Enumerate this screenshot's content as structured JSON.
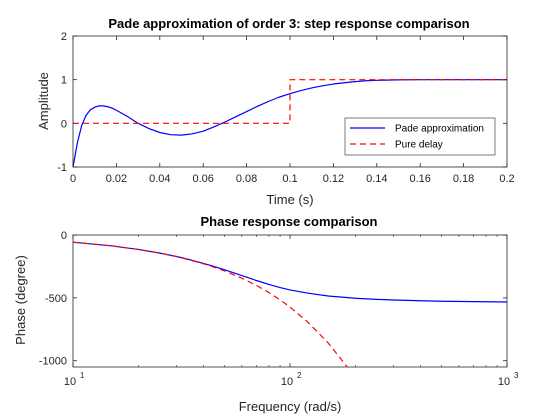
{
  "chart_data": [
    {
      "type": "line",
      "title": "Pade approximation of order 3: step response comparison",
      "xlabel": "Time (s)",
      "ylabel": "Amplitude",
      "xlim": [
        0,
        0.2
      ],
      "ylim": [
        -1,
        2
      ],
      "xticks": [
        0,
        0.02,
        0.04,
        0.06,
        0.08,
        0.1,
        0.12,
        0.14,
        0.16,
        0.18,
        0.2
      ],
      "xtick_labels": [
        "0",
        "0.02",
        "0.04",
        "0.06",
        "0.08",
        "0.1",
        "0.12",
        "0.14",
        "0.16",
        "0.18",
        "0.2"
      ],
      "yticks": [
        -1,
        0,
        1,
        2
      ],
      "ytick_labels": [
        "-1",
        "0",
        "1",
        "2"
      ],
      "legend": {
        "placement": "bottom-right",
        "entries": [
          "Pade approximation",
          "Pure delay"
        ]
      },
      "grid": false,
      "series": [
        {
          "name": "Pade approximation",
          "color": "#0000ff",
          "style": "solid",
          "x": [
            0,
            0.002,
            0.004,
            0.006,
            0.008,
            0.01,
            0.012,
            0.014,
            0.016,
            0.018,
            0.02,
            0.025,
            0.03,
            0.035,
            0.04,
            0.045,
            0.05,
            0.055,
            0.06,
            0.065,
            0.07,
            0.075,
            0.08,
            0.085,
            0.09,
            0.095,
            0.1,
            0.105,
            0.11,
            0.115,
            0.12,
            0.125,
            0.13,
            0.135,
            0.14,
            0.15,
            0.16,
            0.17,
            0.18,
            0.19,
            0.2
          ],
          "y": [
            -1,
            -0.45,
            -0.05,
            0.18,
            0.31,
            0.37,
            0.4,
            0.4,
            0.38,
            0.35,
            0.3,
            0.16,
            0.0,
            -0.12,
            -0.21,
            -0.26,
            -0.27,
            -0.24,
            -0.18,
            -0.08,
            0.03,
            0.15,
            0.27,
            0.39,
            0.5,
            0.6,
            0.68,
            0.75,
            0.81,
            0.86,
            0.9,
            0.93,
            0.955,
            0.975,
            0.985,
            0.995,
            1.0,
            1.0,
            1.0,
            1.0,
            1.0
          ]
        },
        {
          "name": "Pure delay",
          "color": "#ff0000",
          "style": "dashed",
          "x": [
            0,
            0.1,
            0.1,
            0.2
          ],
          "y": [
            0,
            0,
            1,
            1
          ]
        }
      ]
    },
    {
      "type": "line",
      "title": "Phase response comparison",
      "xlabel": "Frequency (rad/s)",
      "ylabel": "Phase (degree)",
      "xscale": "log",
      "xlim": [
        10,
        1000
      ],
      "ylim": [
        -1050,
        0
      ],
      "xticks": [
        10,
        100,
        1000
      ],
      "xtick_labels": [
        {
          "base": "10",
          "exp": "1"
        },
        {
          "base": "10",
          "exp": "2"
        },
        {
          "base": "10",
          "exp": "3"
        }
      ],
      "yticks": [
        0,
        -500,
        -1000
      ],
      "ytick_labels": [
        "0",
        "-500",
        "-1000"
      ],
      "grid": false,
      "series": [
        {
          "color": "#0000ff",
          "style": "solid",
          "x": [
            10,
            15,
            20,
            25,
            30,
            35,
            40,
            45,
            50,
            60,
            70,
            80,
            90,
            100,
            120,
            150,
            200,
            250,
            300,
            400,
            500,
            700,
            1000
          ],
          "y": [
            -57,
            -86,
            -115,
            -143,
            -171,
            -199,
            -226,
            -252,
            -277,
            -323,
            -362,
            -393,
            -418,
            -437,
            -462,
            -485,
            -503,
            -512,
            -517,
            -523,
            -527,
            -530,
            -533
          ]
        },
        {
          "color": "#ff0000",
          "style": "dashed",
          "x": [
            10,
            15,
            20,
            25,
            30,
            35,
            40,
            45,
            50,
            60,
            70,
            80,
            90,
            100,
            120,
            150,
            180,
            190
          ],
          "y": [
            -57,
            -86,
            -115,
            -143,
            -172,
            -201,
            -229,
            -258,
            -286,
            -344,
            -401,
            -458,
            -516,
            -573,
            -688,
            -859,
            -1031,
            -1089
          ]
        }
      ]
    }
  ]
}
